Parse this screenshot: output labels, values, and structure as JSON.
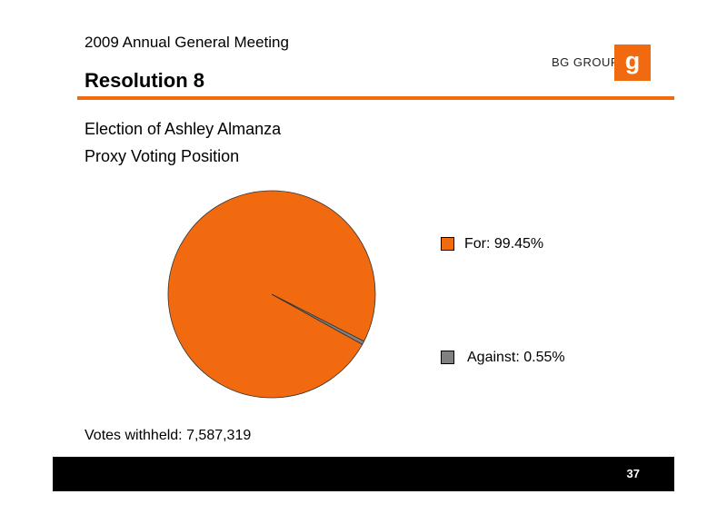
{
  "header": {
    "meeting_title": "2009 Annual General Meeting",
    "resolution_title": "Resolution 8",
    "logo_text": "BG GROUP",
    "logo_mark": "g"
  },
  "colors": {
    "accent": "#F26A0F",
    "against": "#808080",
    "footer": "#000000"
  },
  "main": {
    "subtitle_1": "Election of Ashley Almanza",
    "subtitle_2": "Proxy Voting Position",
    "votes_withheld": "Votes withheld: 7,587,319"
  },
  "chart_data": {
    "type": "pie",
    "slices": [
      {
        "label": "For",
        "value": 99.45,
        "display": "For: 99.45%",
        "color": "#F26A0F"
      },
      {
        "label": "Against",
        "value": 0.55,
        "display": "Against: 0.55%",
        "color": "#808080"
      }
    ],
    "legend_position": "right"
  },
  "footer": {
    "page_number": "37"
  }
}
